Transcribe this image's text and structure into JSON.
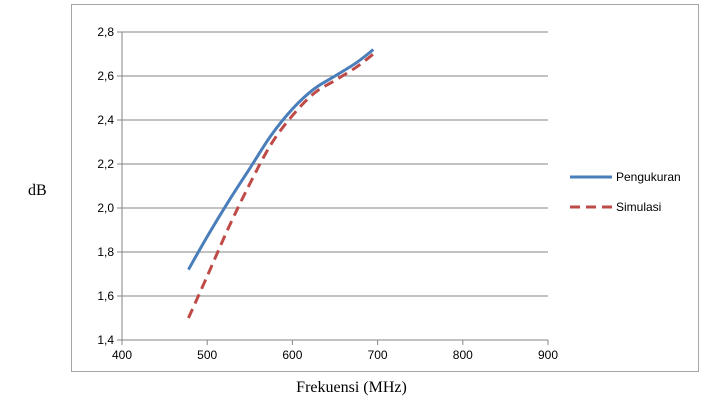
{
  "chart_data": {
    "type": "line",
    "xlabel": "Frekuensi (MHz)",
    "ylabel": "dB",
    "xlim": [
      400,
      900
    ],
    "ylim": [
      1.4,
      2.8
    ],
    "xticks": [
      "400",
      "500",
      "600",
      "700",
      "800",
      "900"
    ],
    "yticks": [
      "1,4",
      "1,6",
      "1,8",
      "2,0",
      "2,2",
      "2,4",
      "2,6",
      "2,8"
    ],
    "grid": "horizontal",
    "legend_position": "right",
    "series": [
      {
        "name": "Pengukuran",
        "color": "#4a7ebb",
        "style": "solid",
        "x": [
          478,
          500,
          525,
          550,
          575,
          600,
          625,
          650,
          675,
          695
        ],
        "y": [
          1.72,
          1.87,
          2.03,
          2.18,
          2.33,
          2.45,
          2.54,
          2.6,
          2.66,
          2.72
        ]
      },
      {
        "name": "Simulasi",
        "color": "#be4b48",
        "style": "dashed",
        "x": [
          478,
          500,
          525,
          550,
          575,
          600,
          625,
          650,
          675,
          695
        ],
        "y": [
          1.5,
          1.69,
          1.91,
          2.11,
          2.29,
          2.42,
          2.52,
          2.58,
          2.64,
          2.7
        ]
      }
    ]
  }
}
